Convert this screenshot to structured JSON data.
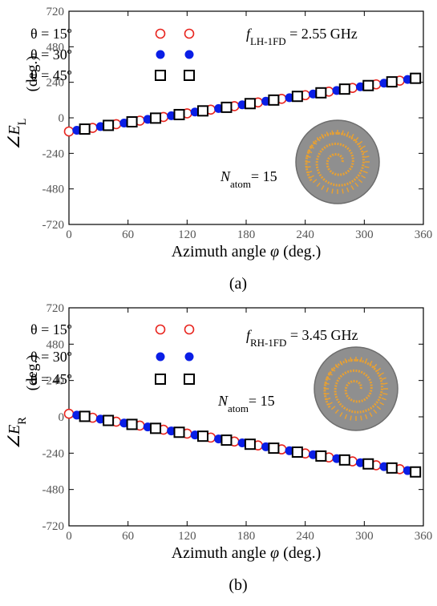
{
  "chart_data": [
    {
      "type": "scatter",
      "ylabel": [
        "∠E",
        "L"
      ],
      "ylabel_unit": "(deg.)",
      "xlabel": [
        "Azimuth angle ",
        "φ",
        " (deg.)"
      ],
      "annotation_freq": [
        "f",
        "LH-1FD",
        " = 2.55 GHz"
      ],
      "annotation_atoms": [
        "N",
        "atom",
        "= 15"
      ],
      "caption": "(a)",
      "xlim": [
        0,
        360
      ],
      "xticks": [
        0,
        60,
        120,
        180,
        240,
        300,
        360
      ],
      "ylim": [
        -720,
        720
      ],
      "yticks": [
        -720,
        -480,
        -240,
        0,
        240,
        480,
        720
      ],
      "series": [
        {
          "name": "θ = 15º",
          "color": "#e8251f",
          "marker": "open-circle",
          "x": [
            0,
            24,
            48,
            72,
            96,
            120,
            144,
            168,
            192,
            216,
            240,
            264,
            288,
            312,
            336
          ],
          "values": [
            -92,
            -68,
            -43,
            -19,
            6,
            30,
            55,
            79,
            104,
            128,
            153,
            177,
            202,
            226,
            251
          ]
        },
        {
          "name": "θ = 30º",
          "color": "#0a1ee6",
          "marker": "filled-circle",
          "x": [
            8,
            32,
            56,
            80,
            104,
            128,
            152,
            176,
            200,
            224,
            248,
            272,
            296,
            320,
            344
          ],
          "values": [
            -84,
            -59,
            -35,
            -10,
            14,
            39,
            63,
            88,
            112,
            136,
            161,
            185,
            210,
            234,
            259
          ]
        },
        {
          "name": "θ = 45º",
          "color": "#000000",
          "marker": "open-square",
          "x": [
            16,
            40,
            64,
            88,
            112,
            136,
            160,
            184,
            208,
            232,
            256,
            280,
            304,
            328,
            352
          ],
          "values": [
            -76,
            -51,
            -27,
            -2,
            22,
            47,
            71,
            96,
            120,
            145,
            169,
            194,
            218,
            243,
            267
          ]
        }
      ]
    },
    {
      "type": "scatter",
      "ylabel": [
        "∠E",
        "R"
      ],
      "ylabel_unit": "(deg.)",
      "xlabel": [
        "Azimuth angle ",
        "φ",
        " (deg.)"
      ],
      "annotation_freq": [
        "f",
        "RH-1FD",
        " = 3.45 GHz"
      ],
      "annotation_atoms": [
        "N",
        "atom",
        "= 15"
      ],
      "caption": "(b)",
      "xlim": [
        0,
        360
      ],
      "xticks": [
        0,
        60,
        120,
        180,
        240,
        300,
        360
      ],
      "ylim": [
        -720,
        720
      ],
      "yticks": [
        -720,
        -480,
        -240,
        0,
        240,
        480,
        720
      ],
      "series": [
        {
          "name": "θ = 15º",
          "color": "#e8251f",
          "marker": "open-circle",
          "x": [
            0,
            24,
            48,
            72,
            96,
            120,
            144,
            168,
            192,
            216,
            240,
            264,
            288,
            312,
            336
          ],
          "values": [
            20,
            -6,
            -32,
            -58,
            -85,
            -111,
            -137,
            -163,
            -189,
            -215,
            -242,
            -268,
            -294,
            -320,
            -346
          ]
        },
        {
          "name": "θ = 30º",
          "color": "#0a1ee6",
          "marker": "filled-circle",
          "x": [
            8,
            32,
            56,
            80,
            104,
            128,
            152,
            176,
            200,
            224,
            248,
            272,
            296,
            320,
            344
          ],
          "values": [
            11,
            -15,
            -41,
            -67,
            -93,
            -120,
            -146,
            -172,
            -198,
            -224,
            -250,
            -276,
            -303,
            -329,
            -355
          ]
        },
        {
          "name": "θ = 45º",
          "color": "#000000",
          "marker": "open-square",
          "x": [
            16,
            40,
            64,
            88,
            112,
            136,
            160,
            184,
            208,
            232,
            256,
            280,
            304,
            328,
            352
          ],
          "values": [
            3,
            -24,
            -50,
            -76,
            -102,
            -128,
            -154,
            -181,
            -207,
            -233,
            -259,
            -285,
            -311,
            -338,
            -364
          ]
        }
      ]
    }
  ]
}
